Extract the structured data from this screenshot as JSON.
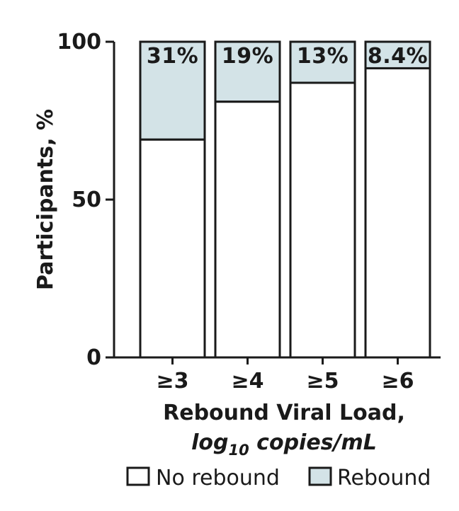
{
  "chart_data": {
    "type": "bar",
    "stacked": true,
    "categories": [
      "≥3",
      "≥4",
      "≥5",
      "≥6"
    ],
    "series": [
      {
        "name": "No rebound",
        "values": [
          69,
          81,
          87,
          91.6
        ],
        "color": "#ffffff"
      },
      {
        "name": "Rebound",
        "values": [
          31,
          19,
          13,
          8.4
        ],
        "color": "#d3e3e7"
      }
    ],
    "data_labels": [
      "31%",
      "19%",
      "13%",
      "8.4%"
    ],
    "ylabel": "Participants, %",
    "xlabel_line1": "Rebound Viral Load,",
    "xlabel_line2_prefix": "log",
    "xlabel_line2_sub": "10",
    "xlabel_line2_suffix": " copies/mL",
    "yticks": [
      0,
      50,
      100
    ],
    "ylim": [
      0,
      100
    ],
    "grid": false,
    "legend_position": "bottom"
  }
}
